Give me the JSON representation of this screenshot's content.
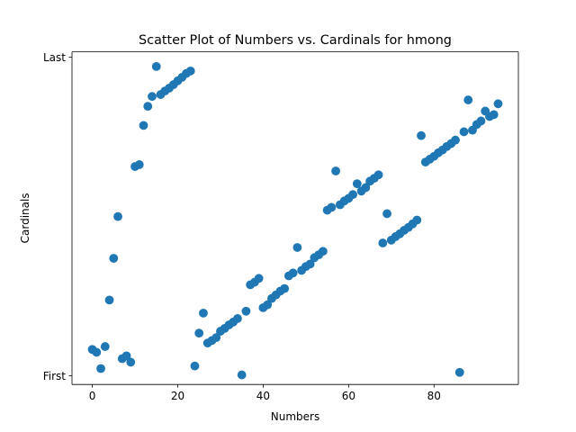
{
  "chart_data": {
    "type": "scatter",
    "title": "Scatter Plot of Numbers vs. Cardinals for hmong",
    "xlabel": "Numbers",
    "ylabel": "Cardinals",
    "xlim": [
      -4.75,
      99.75
    ],
    "ylim": [
      -2.7,
      101.7
    ],
    "xticks": [
      0,
      20,
      40,
      60,
      80
    ],
    "yticks": [
      {
        "value": 0,
        "label": "First"
      },
      {
        "value": 100,
        "label": "Last"
      }
    ],
    "color": "#1f77b4",
    "grid": false,
    "legend": false,
    "points": [
      {
        "x": 0,
        "y": 8.3
      },
      {
        "x": 1,
        "y": 7.4
      },
      {
        "x": 2,
        "y": 2.3
      },
      {
        "x": 3,
        "y": 9.2
      },
      {
        "x": 4,
        "y": 23.8
      },
      {
        "x": 5,
        "y": 36.9
      },
      {
        "x": 6,
        "y": 50.0
      },
      {
        "x": 7,
        "y": 5.4
      },
      {
        "x": 8,
        "y": 6.3
      },
      {
        "x": 9,
        "y": 4.3
      },
      {
        "x": 10,
        "y": 65.7
      },
      {
        "x": 11,
        "y": 66.3
      },
      {
        "x": 12,
        "y": 78.6
      },
      {
        "x": 13,
        "y": 84.6
      },
      {
        "x": 14,
        "y": 87.7
      },
      {
        "x": 15,
        "y": 97.1
      },
      {
        "x": 16,
        "y": 88.3
      },
      {
        "x": 17,
        "y": 89.4
      },
      {
        "x": 18,
        "y": 90.3
      },
      {
        "x": 19,
        "y": 91.4
      },
      {
        "x": 20,
        "y": 92.6
      },
      {
        "x": 21,
        "y": 93.7
      },
      {
        "x": 22,
        "y": 94.9
      },
      {
        "x": 23,
        "y": 95.7
      },
      {
        "x": 24,
        "y": 3.1
      },
      {
        "x": 25,
        "y": 13.4
      },
      {
        "x": 26,
        "y": 19.7
      },
      {
        "x": 27,
        "y": 10.3
      },
      {
        "x": 28,
        "y": 11.1
      },
      {
        "x": 29,
        "y": 12.0
      },
      {
        "x": 30,
        "y": 14.0
      },
      {
        "x": 31,
        "y": 14.9
      },
      {
        "x": 32,
        "y": 16.0
      },
      {
        "x": 33,
        "y": 16.9
      },
      {
        "x": 34,
        "y": 18.0
      },
      {
        "x": 35,
        "y": 0.3
      },
      {
        "x": 36,
        "y": 20.3
      },
      {
        "x": 37,
        "y": 28.6
      },
      {
        "x": 38,
        "y": 29.4
      },
      {
        "x": 39,
        "y": 30.6
      },
      {
        "x": 40,
        "y": 21.4
      },
      {
        "x": 41,
        "y": 22.3
      },
      {
        "x": 42,
        "y": 24.3
      },
      {
        "x": 43,
        "y": 25.4
      },
      {
        "x": 44,
        "y": 26.6
      },
      {
        "x": 45,
        "y": 27.4
      },
      {
        "x": 46,
        "y": 31.4
      },
      {
        "x": 47,
        "y": 32.3
      },
      {
        "x": 48,
        "y": 40.3
      },
      {
        "x": 49,
        "y": 33.1
      },
      {
        "x": 50,
        "y": 34.3
      },
      {
        "x": 51,
        "y": 35.1
      },
      {
        "x": 52,
        "y": 37.1
      },
      {
        "x": 53,
        "y": 38.0
      },
      {
        "x": 54,
        "y": 39.1
      },
      {
        "x": 55,
        "y": 52.0
      },
      {
        "x": 56,
        "y": 52.9
      },
      {
        "x": 57,
        "y": 64.3
      },
      {
        "x": 58,
        "y": 53.7
      },
      {
        "x": 59,
        "y": 54.9
      },
      {
        "x": 60,
        "y": 55.7
      },
      {
        "x": 61,
        "y": 56.9
      },
      {
        "x": 62,
        "y": 60.3
      },
      {
        "x": 63,
        "y": 58.0
      },
      {
        "x": 64,
        "y": 59.1
      },
      {
        "x": 65,
        "y": 61.1
      },
      {
        "x": 66,
        "y": 62.0
      },
      {
        "x": 67,
        "y": 63.1
      },
      {
        "x": 68,
        "y": 41.7
      },
      {
        "x": 69,
        "y": 50.9
      },
      {
        "x": 70,
        "y": 42.6
      },
      {
        "x": 71,
        "y": 43.7
      },
      {
        "x": 72,
        "y": 44.6
      },
      {
        "x": 73,
        "y": 45.7
      },
      {
        "x": 74,
        "y": 46.6
      },
      {
        "x": 75,
        "y": 47.7
      },
      {
        "x": 76,
        "y": 48.9
      },
      {
        "x": 77,
        "y": 75.4
      },
      {
        "x": 78,
        "y": 67.1
      },
      {
        "x": 79,
        "y": 68.0
      },
      {
        "x": 80,
        "y": 68.9
      },
      {
        "x": 81,
        "y": 70.0
      },
      {
        "x": 82,
        "y": 70.9
      },
      {
        "x": 83,
        "y": 72.0
      },
      {
        "x": 84,
        "y": 72.9
      },
      {
        "x": 85,
        "y": 74.0
      },
      {
        "x": 86,
        "y": 1.1
      },
      {
        "x": 87,
        "y": 76.6
      },
      {
        "x": 88,
        "y": 86.6
      },
      {
        "x": 89,
        "y": 77.1
      },
      {
        "x": 90,
        "y": 78.9
      },
      {
        "x": 91,
        "y": 80.0
      },
      {
        "x": 92,
        "y": 83.1
      },
      {
        "x": 93,
        "y": 81.4
      },
      {
        "x": 94,
        "y": 82.0
      },
      {
        "x": 95,
        "y": 85.4
      }
    ]
  }
}
